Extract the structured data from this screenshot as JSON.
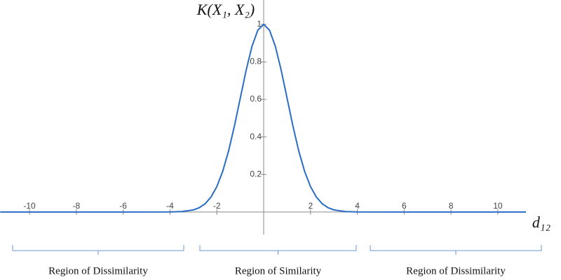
{
  "chart_data": {
    "type": "line",
    "y_label": "K(X₁, X₂)",
    "x_label": "d₁₂",
    "x": [
      -11.25,
      -6,
      -4,
      -3.5,
      -3,
      -2.75,
      -2.5,
      -2.25,
      -2,
      -1.75,
      -1.5,
      -1.25,
      -1,
      -0.75,
      -0.5,
      -0.25,
      0,
      0.25,
      0.5,
      0.75,
      1,
      1.25,
      1.5,
      1.75,
      2,
      2.25,
      2.5,
      2.75,
      3,
      3.5,
      4,
      6,
      11.2
    ],
    "series": [
      {
        "color": "#2b6cc4",
        "values": [
          0,
          0,
          0.0003,
          0.0022,
          0.0111,
          0.0228,
          0.0439,
          0.0796,
          0.1353,
          0.2163,
          0.3247,
          0.4578,
          0.6065,
          0.7548,
          0.8825,
          0.969,
          1,
          0.969,
          0.8825,
          0.7548,
          0.6065,
          0.4578,
          0.3247,
          0.2163,
          0.1353,
          0.0796,
          0.0439,
          0.0228,
          0.0111,
          0.0022,
          0.0003,
          0,
          0
        ]
      }
    ],
    "xlim": [
      -11.26,
      11.2
    ],
    "ylim": [
      -0.12,
      1.13
    ],
    "xticks": [
      -10,
      -8,
      -6,
      -4,
      -2,
      2,
      4,
      6,
      8,
      10
    ],
    "yticks": [
      0.2,
      0.4,
      0.6,
      0.8,
      1
    ],
    "grid": false,
    "annotations": [
      "Region of Dissimilarity",
      "Region of Similarity",
      "Region of Dissimilarity"
    ]
  }
}
